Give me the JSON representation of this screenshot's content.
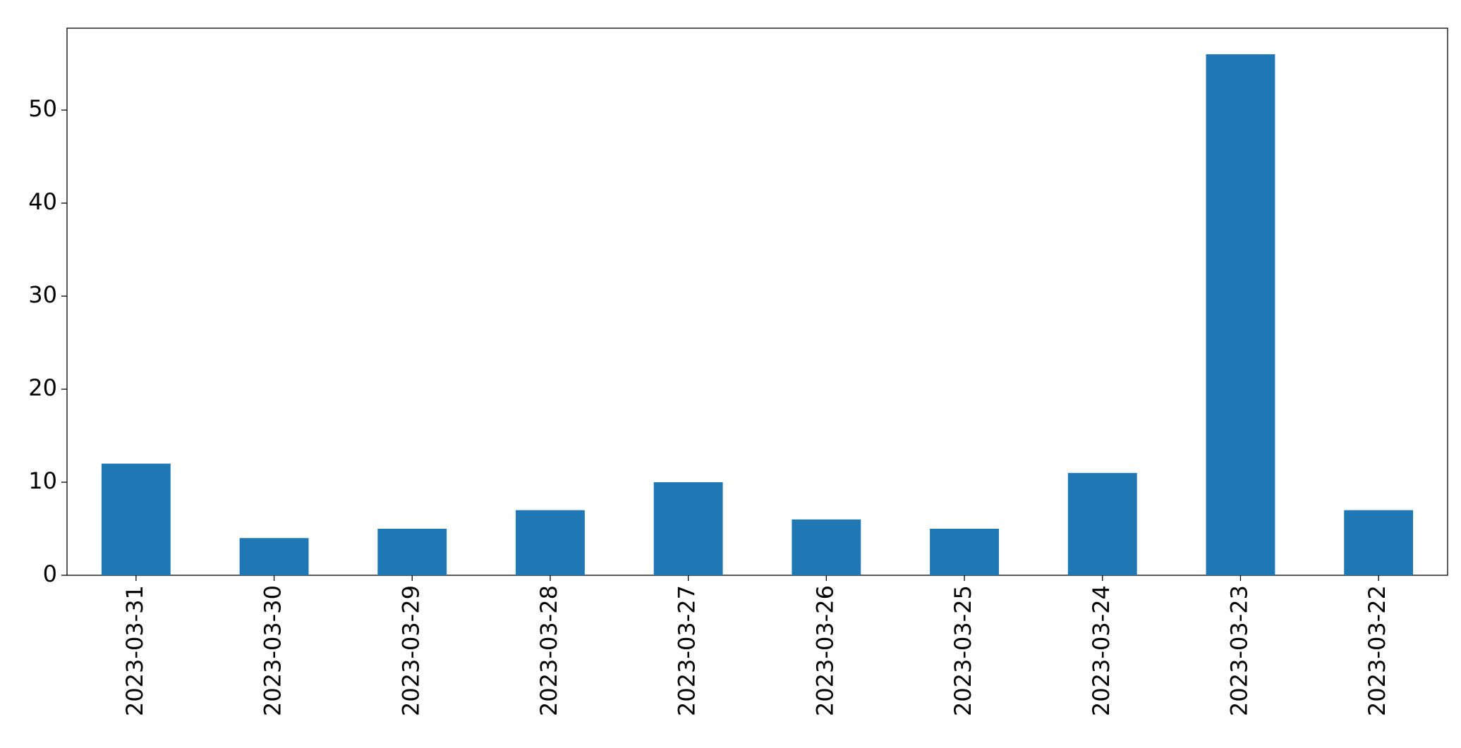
{
  "chart_data": {
    "type": "bar",
    "categories": [
      "2023-03-31",
      "2023-03-30",
      "2023-03-29",
      "2023-03-28",
      "2023-03-27",
      "2023-03-26",
      "2023-03-25",
      "2023-03-24",
      "2023-03-23",
      "2023-03-22"
    ],
    "values": [
      12,
      4,
      5,
      7,
      10,
      6,
      5,
      11,
      56,
      7
    ],
    "color": "#1f77b4",
    "ylim": [
      0,
      58.8
    ],
    "yticks": [
      0,
      10,
      20,
      30,
      40,
      50
    ],
    "grid": false
  }
}
